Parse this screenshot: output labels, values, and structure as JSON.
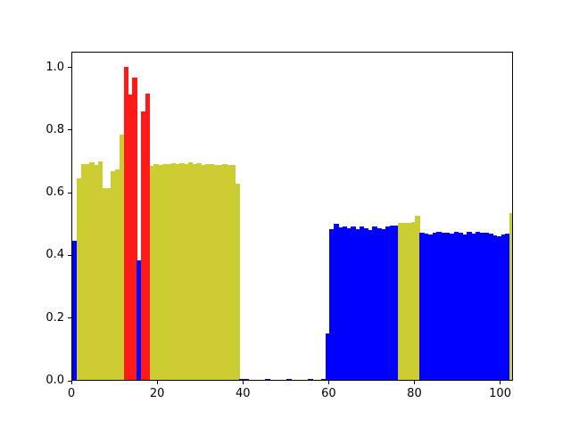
{
  "chart_data": {
    "type": "bar",
    "title": "",
    "xlabel": "",
    "ylabel": "",
    "xlim": [
      0,
      103
    ],
    "ylim": [
      0,
      1.05
    ],
    "xticks": [
      "0",
      "20",
      "40",
      "60",
      "80",
      "100"
    ],
    "yticks": [
      "0.0",
      "0.2",
      "0.4",
      "0.6",
      "0.8",
      "1.0"
    ],
    "colors": {
      "blue": "#0000ff",
      "yellow": "#cccc33",
      "red": "#ff1a1a"
    },
    "bars": [
      [
        0,
        0.445,
        "blue"
      ],
      [
        1,
        0.643,
        "yellow"
      ],
      [
        2,
        0.69,
        "yellow"
      ],
      [
        3,
        0.688,
        "yellow"
      ],
      [
        4,
        0.693,
        "yellow"
      ],
      [
        5,
        0.686,
        "yellow"
      ],
      [
        6,
        0.698,
        "yellow"
      ],
      [
        7,
        0.612,
        "yellow"
      ],
      [
        8,
        0.612,
        "yellow"
      ],
      [
        9,
        0.667,
        "yellow"
      ],
      [
        10,
        0.672,
        "yellow"
      ],
      [
        11,
        0.782,
        "yellow"
      ],
      [
        12,
        1.0,
        "red"
      ],
      [
        13,
        0.91,
        "red"
      ],
      [
        14,
        0.965,
        "red"
      ],
      [
        15,
        0.38,
        "blue"
      ],
      [
        16,
        0.857,
        "red"
      ],
      [
        17,
        0.913,
        "red"
      ],
      [
        18,
        0.682,
        "yellow"
      ],
      [
        19,
        0.69,
        "yellow"
      ],
      [
        20,
        0.687,
        "yellow"
      ],
      [
        21,
        0.69,
        "yellow"
      ],
      [
        22,
        0.689,
        "yellow"
      ],
      [
        23,
        0.692,
        "yellow"
      ],
      [
        24,
        0.689,
        "yellow"
      ],
      [
        25,
        0.692,
        "yellow"
      ],
      [
        26,
        0.688,
        "yellow"
      ],
      [
        27,
        0.694,
        "yellow"
      ],
      [
        28,
        0.688,
        "yellow"
      ],
      [
        29,
        0.691,
        "yellow"
      ],
      [
        30,
        0.687,
        "yellow"
      ],
      [
        31,
        0.69,
        "yellow"
      ],
      [
        32,
        0.689,
        "yellow"
      ],
      [
        33,
        0.687,
        "yellow"
      ],
      [
        34,
        0.686,
        "yellow"
      ],
      [
        35,
        0.688,
        "yellow"
      ],
      [
        36,
        0.685,
        "yellow"
      ],
      [
        37,
        0.685,
        "yellow"
      ],
      [
        38,
        0.625,
        "yellow"
      ],
      [
        39,
        0.003,
        "blue"
      ],
      [
        40,
        0.003,
        "blue"
      ],
      [
        45,
        0.003,
        "blue"
      ],
      [
        50,
        0.003,
        "blue"
      ],
      [
        55,
        0.003,
        "blue"
      ],
      [
        58,
        0.003,
        "blue"
      ],
      [
        59,
        0.147,
        "blue"
      ],
      [
        60,
        0.48,
        "blue"
      ],
      [
        61,
        0.497,
        "blue"
      ],
      [
        62,
        0.487,
        "blue"
      ],
      [
        63,
        0.489,
        "blue"
      ],
      [
        64,
        0.485,
        "blue"
      ],
      [
        65,
        0.49,
        "blue"
      ],
      [
        66,
        0.48,
        "blue"
      ],
      [
        67,
        0.49,
        "blue"
      ],
      [
        68,
        0.484,
        "blue"
      ],
      [
        69,
        0.478,
        "blue"
      ],
      [
        70,
        0.489,
        "blue"
      ],
      [
        71,
        0.485,
        "blue"
      ],
      [
        72,
        0.48,
        "blue"
      ],
      [
        73,
        0.49,
        "blue"
      ],
      [
        74,
        0.493,
        "blue"
      ],
      [
        75,
        0.493,
        "blue"
      ],
      [
        76,
        0.5,
        "yellow"
      ],
      [
        77,
        0.5,
        "yellow"
      ],
      [
        78,
        0.5,
        "yellow"
      ],
      [
        79,
        0.505,
        "yellow"
      ],
      [
        80,
        0.525,
        "yellow"
      ],
      [
        81,
        0.47,
        "blue"
      ],
      [
        82,
        0.468,
        "blue"
      ],
      [
        83,
        0.465,
        "blue"
      ],
      [
        84,
        0.47,
        "blue"
      ],
      [
        85,
        0.471,
        "blue"
      ],
      [
        86,
        0.47,
        "blue"
      ],
      [
        87,
        0.47,
        "blue"
      ],
      [
        88,
        0.468,
        "blue"
      ],
      [
        89,
        0.471,
        "blue"
      ],
      [
        90,
        0.47,
        "blue"
      ],
      [
        91,
        0.465,
        "blue"
      ],
      [
        92,
        0.471,
        "blue"
      ],
      [
        93,
        0.468,
        "blue"
      ],
      [
        94,
        0.471,
        "blue"
      ],
      [
        95,
        0.47,
        "blue"
      ],
      [
        96,
        0.469,
        "blue"
      ],
      [
        97,
        0.466,
        "blue"
      ],
      [
        98,
        0.46,
        "blue"
      ],
      [
        99,
        0.458,
        "blue"
      ],
      [
        100,
        0.465,
        "blue"
      ],
      [
        101,
        0.466,
        "blue"
      ],
      [
        102,
        0.532,
        "yellow"
      ]
    ]
  }
}
